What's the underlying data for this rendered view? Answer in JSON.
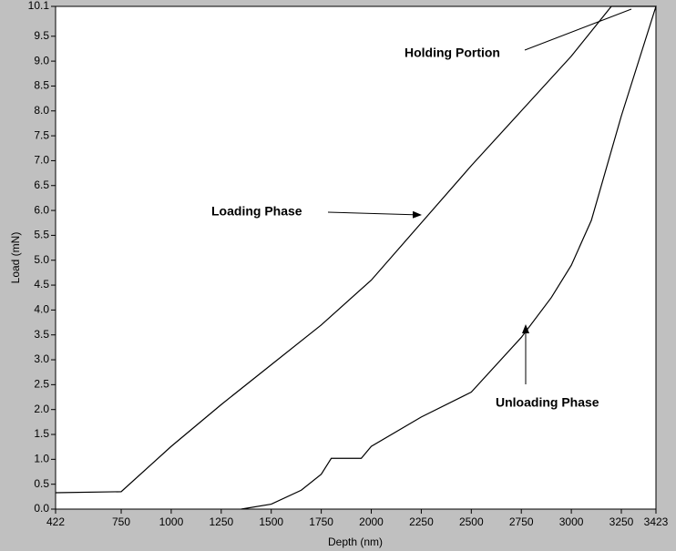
{
  "chart_data": {
    "type": "line",
    "xlabel": "Depth (nm)",
    "ylabel": "Load (mN)",
    "x": [
      422,
      750,
      1000,
      1250,
      1500,
      1750,
      2000,
      2250,
      2500,
      2750,
      3000,
      3200,
      3423,
      3250,
      3100,
      3000,
      2900,
      2750,
      2500,
      2250,
      2000,
      1950,
      1800,
      1750,
      1650,
      1500,
      1350
    ],
    "series": [
      {
        "color": "#000000",
        "values": [
          0.33,
          0.35,
          1.26,
          2.1,
          2.9,
          3.7,
          4.6,
          5.75,
          6.9,
          8.0,
          9.1,
          10.1,
          10.1,
          7.9,
          5.8,
          4.9,
          4.25,
          3.45,
          2.35,
          1.85,
          1.26,
          1.02,
          1.02,
          0.7,
          0.38,
          0.1,
          0
        ]
      }
    ],
    "xlim": [
      422,
      3423
    ],
    "xticks": [
      422,
      750,
      1000,
      1250,
      1500,
      1750,
      2000,
      2250,
      2500,
      2750,
      3000,
      3250,
      3423
    ],
    "ylim": [
      0,
      10.1
    ],
    "yticks": [
      {
        "value": 0,
        "label": "0.0"
      },
      0.5,
      {
        "value": 1,
        "label": "1.0"
      },
      1.5,
      {
        "value": 2,
        "label": "2.0"
      },
      2.5,
      {
        "value": 3,
        "label": "3.0"
      },
      3.5,
      {
        "value": 4,
        "label": "4.0"
      },
      4.5,
      {
        "value": 5,
        "label": "5.0"
      },
      5.5,
      {
        "value": 6,
        "label": "6.0"
      },
      6.5,
      {
        "value": 7,
        "label": "7.0"
      },
      7.5,
      {
        "value": 8,
        "label": "8.0"
      },
      8.5,
      {
        "value": 9,
        "label": "9.0"
      },
      9.5,
      10.1
    ],
    "annotations": [
      "Holding Portion",
      "Loading Phase",
      "Unloading Phase"
    ]
  }
}
